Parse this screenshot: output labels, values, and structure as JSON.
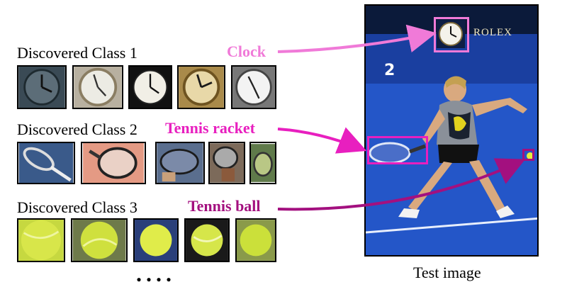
{
  "classes": [
    {
      "label": "Discovered Class 1",
      "concept": "Clock",
      "color": "#f07ad8"
    },
    {
      "label": "Discovered Class 2",
      "concept": "Tennis racket",
      "color": "#e81fbf"
    },
    {
      "label": "Discovered Class 3",
      "concept": "Tennis ball",
      "color": "#a3107f"
    }
  ],
  "test_image": {
    "caption": "Test image",
    "scoreboard_brand": "ROLEX"
  },
  "more_indicator": "...."
}
